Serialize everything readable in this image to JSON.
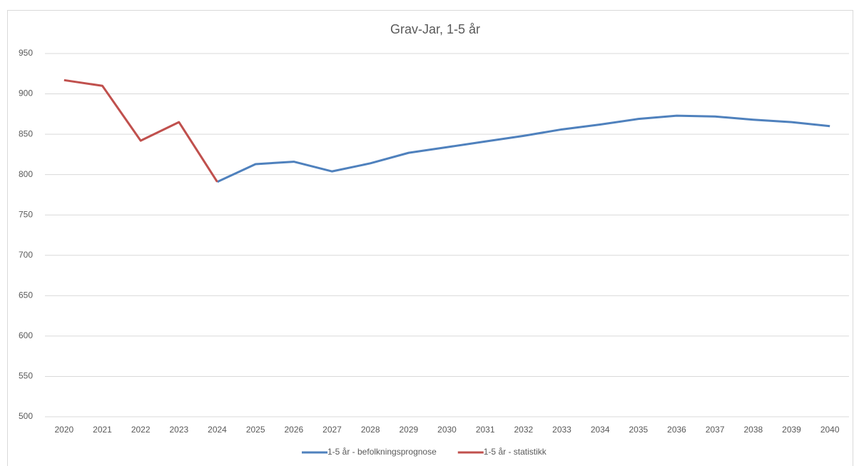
{
  "chart_data": {
    "type": "line",
    "title": "Grav-Jar, 1-5 år",
    "categories": [
      "2020",
      "2021",
      "2022",
      "2023",
      "2024",
      "2025",
      "2026",
      "2027",
      "2028",
      "2029",
      "2030",
      "2031",
      "2032",
      "2033",
      "2034",
      "2035",
      "2036",
      "2037",
      "2038",
      "2039",
      "2040"
    ],
    "series": [
      {
        "name": "1-5 år - befolkningsprognose",
        "color": "#4f81bd",
        "values": [
          null,
          null,
          null,
          null,
          791,
          813,
          816,
          804,
          814,
          827,
          834,
          841,
          848,
          856,
          862,
          869,
          873,
          872,
          868,
          865,
          860
        ]
      },
      {
        "name": "1-5 år - statistikk",
        "color": "#c0504d",
        "values": [
          917,
          910,
          842,
          865,
          791,
          null,
          null,
          null,
          null,
          null,
          null,
          null,
          null,
          null,
          null,
          null,
          null,
          null,
          null,
          null,
          null
        ]
      }
    ],
    "ylim": [
      500,
      950
    ],
    "yticks": [
      500,
      550,
      600,
      650,
      700,
      750,
      800,
      850,
      900,
      950
    ],
    "grid": true,
    "legend": "bottom"
  }
}
